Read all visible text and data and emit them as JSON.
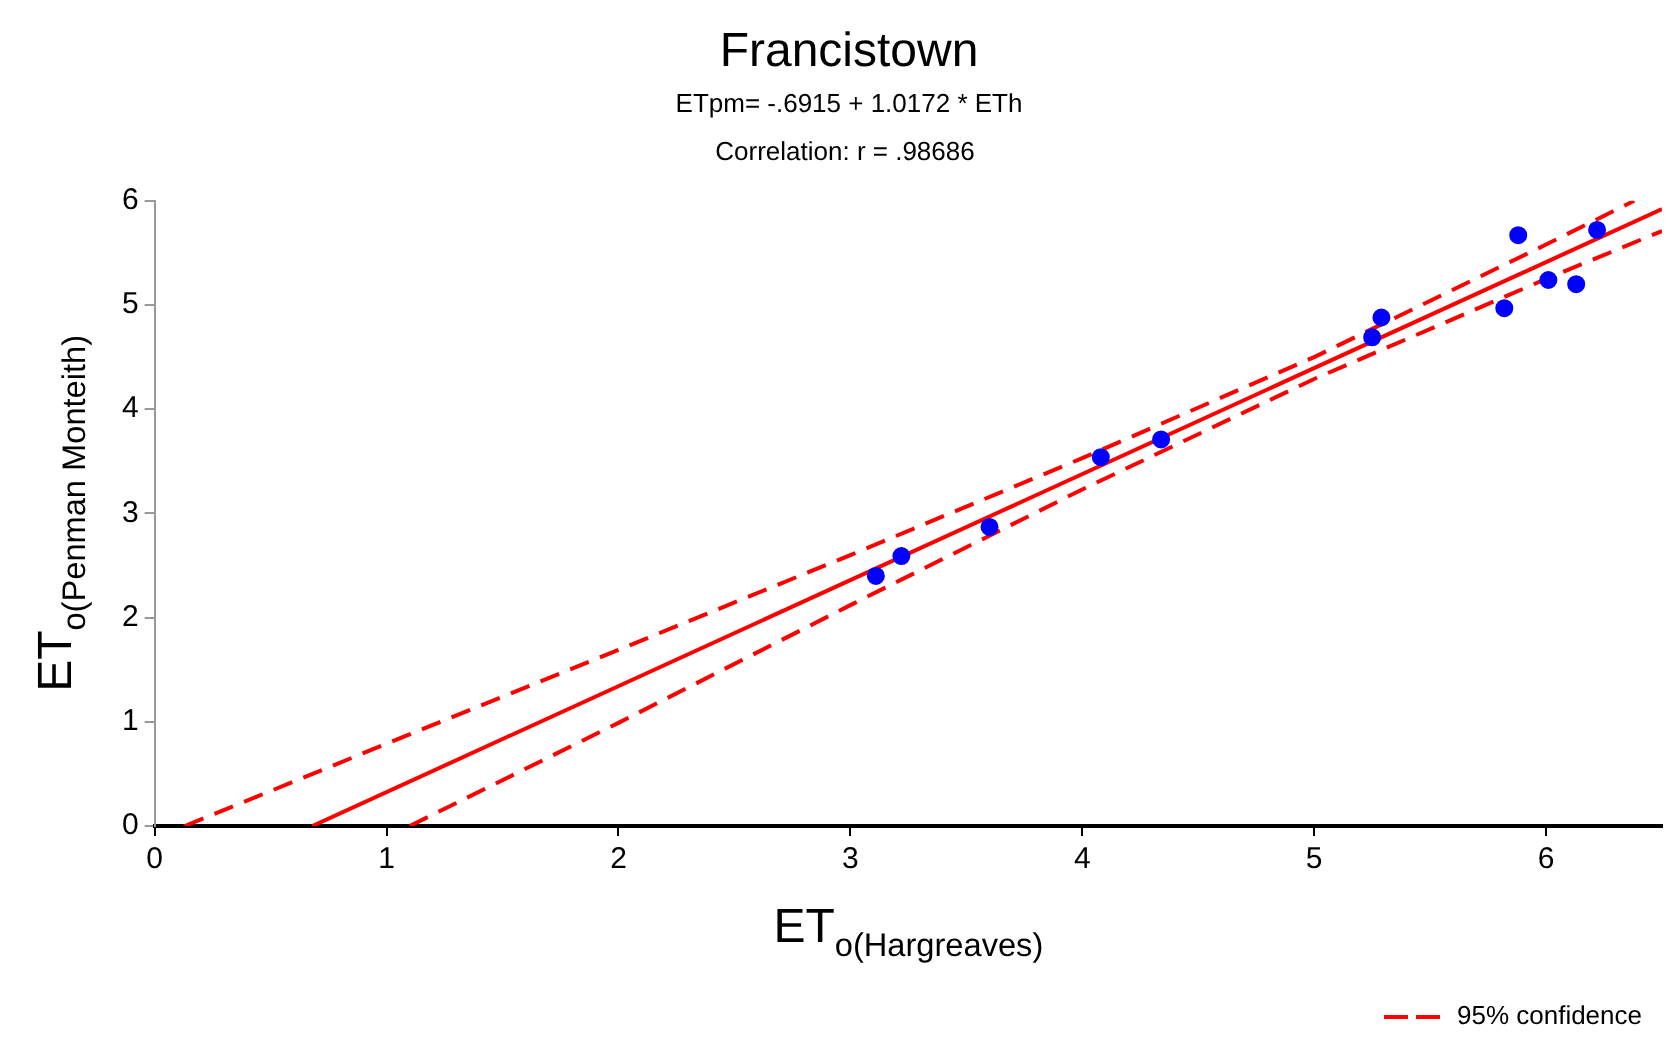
{
  "chart_data": {
    "type": "scatter",
    "title": "Francistown",
    "subtitle": "ETpm= -.6915 + 1.0172 * ETh",
    "annotations": [
      "Correlation: r = .98686"
    ],
    "xlabel": "ET$_{o(Hargreaves)}$",
    "ylabel": "ET$_{o(Penman Monteith)}$",
    "xlim": [
      0,
      6.5
    ],
    "ylim": [
      0,
      6
    ],
    "xticks": [
      0,
      1,
      2,
      3,
      4,
      5,
      6
    ],
    "yticks": [
      0,
      1,
      2,
      3,
      4,
      5,
      6
    ],
    "grid": false,
    "legend": "bottom right",
    "series": [
      {
        "type": "scatter",
        "color": "#0000ff",
        "marker": "circle",
        "x": [
          3.11,
          3.22,
          3.6,
          4.08,
          4.34,
          5.25,
          5.29,
          5.82,
          5.88,
          6.01,
          6.13,
          6.22
        ],
        "values": [
          2.4,
          2.59,
          2.87,
          3.54,
          3.71,
          4.69,
          4.88,
          4.97,
          5.67,
          5.24,
          5.2,
          5.72
        ]
      },
      {
        "type": "line",
        "color": "#ff0000",
        "marker": "none",
        "line_style": "solid",
        "x": [
          0.68,
          6.5
        ],
        "values": [
          0,
          5.92
        ]
      },
      {
        "type": "line",
        "name": "95% confidence",
        "color": "#ff0000",
        "marker": "none",
        "line_style": "dashed",
        "x": [
          0.13,
          1,
          2,
          3,
          4,
          5,
          6,
          6.38
        ],
        "values": [
          0,
          0.79,
          1.69,
          2.6,
          3.53,
          4.5,
          5.58,
          6.0
        ]
      },
      {
        "type": "line",
        "color": "#ff0000",
        "marker": "none",
        "line_style": "dashed",
        "x": [
          1.1,
          2,
          3,
          4,
          5,
          6,
          6.5
        ],
        "values": [
          0,
          0.99,
          2.12,
          3.23,
          4.29,
          5.25,
          5.71
        ]
      }
    ]
  }
}
